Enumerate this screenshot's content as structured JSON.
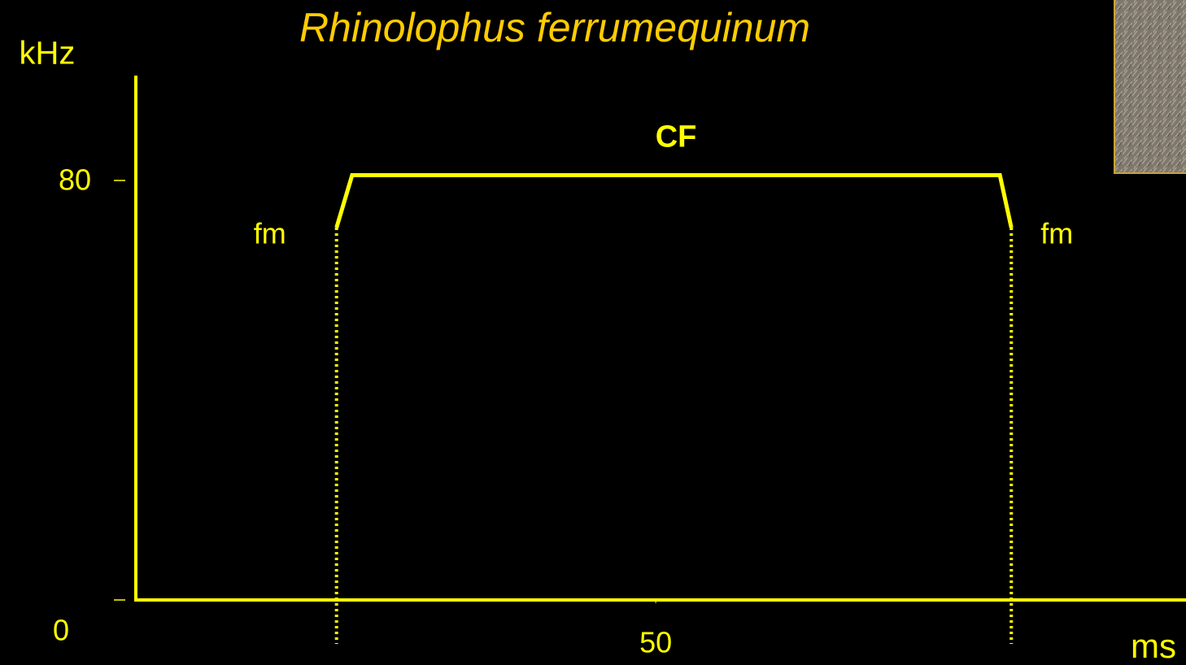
{
  "chart_data": {
    "type": "line",
    "title": "Rhinolophus ferrumequinum",
    "x_label": "ms",
    "y_label": "kHz",
    "x": [
      19.3,
      20.8,
      83.1,
      84.2
    ],
    "series": [
      {
        "color": "#ffff00",
        "values": [
          71,
          81,
          81,
          71
        ]
      }
    ],
    "annotations": [
      "fm",
      "CF",
      "fm"
    ],
    "xlim": [
      0,
      101
    ],
    "ylim": [
      0,
      100
    ],
    "xticks": [
      50
    ],
    "yticks": [
      0,
      80
    ],
    "axis_color": "#ffff00",
    "title_color": "#ffcc00",
    "grid": false
  }
}
